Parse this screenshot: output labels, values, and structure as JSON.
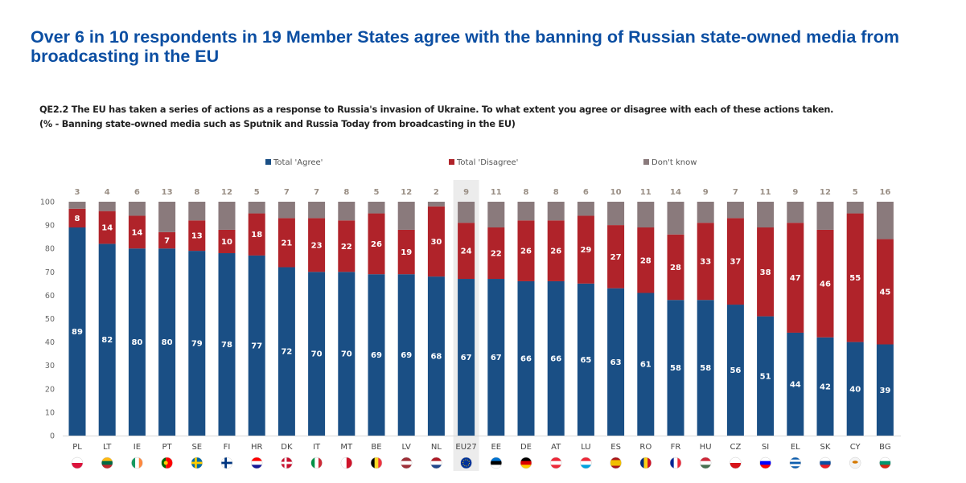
{
  "title": "Over 6 in 10 respondents in 19 Member States agree with the banning of Russian state-owned media from broadcasting in the EU",
  "question": {
    "line1": "QE2.2  The EU has taken a series of actions as a response to Russia's invasion of Ukraine. To what extent you agree or disagree with each of these actions taken.",
    "line2": "(% - Banning state-owned media such as Sputnik and Russia Today from broadcasting in the EU)"
  },
  "colors": {
    "agree": "#1a4f85",
    "disagree": "#b0232a",
    "dont_know": "#8a7a7c",
    "highlight": "#ececec"
  },
  "chart_data": {
    "type": "bar",
    "stacked": true,
    "title": "Over 6 in 10 respondents in 19 Member States agree with the banning of Russian state-owned media from broadcasting in the EU",
    "xlabel": "",
    "ylabel": "",
    "ylim": [
      0,
      100
    ],
    "yticks": [
      0,
      10,
      20,
      30,
      40,
      50,
      60,
      70,
      80,
      90,
      100
    ],
    "grid": false,
    "legend_position": "top",
    "highlighted_category": "EU27",
    "categories": [
      "PL",
      "LT",
      "IE",
      "PT",
      "SE",
      "FI",
      "HR",
      "DK",
      "IT",
      "MT",
      "BE",
      "LV",
      "NL",
      "EU27",
      "EE",
      "DE",
      "AT",
      "LU",
      "ES",
      "RO",
      "FR",
      "HU",
      "CZ",
      "SI",
      "EL",
      "SK",
      "CY",
      "BG"
    ],
    "series": [
      {
        "name": "Total 'Agree'",
        "key": "agree",
        "values": [
          89,
          82,
          80,
          80,
          79,
          78,
          77,
          72,
          70,
          70,
          69,
          69,
          68,
          67,
          67,
          66,
          66,
          65,
          63,
          61,
          58,
          58,
          56,
          51,
          44,
          42,
          40,
          39
        ]
      },
      {
        "name": "Total 'Disagree'",
        "key": "disagree",
        "values": [
          8,
          14,
          14,
          7,
          13,
          10,
          18,
          21,
          23,
          22,
          26,
          19,
          30,
          24,
          22,
          26,
          26,
          29,
          27,
          28,
          28,
          33,
          37,
          38,
          47,
          46,
          55,
          45
        ]
      },
      {
        "name": "Don't know",
        "key": "dont_know",
        "values": [
          3,
          4,
          6,
          13,
          8,
          12,
          5,
          7,
          7,
          8,
          5,
          12,
          2,
          9,
          11,
          8,
          8,
          6,
          10,
          11,
          14,
          9,
          7,
          11,
          9,
          12,
          5,
          16
        ]
      }
    ]
  }
}
